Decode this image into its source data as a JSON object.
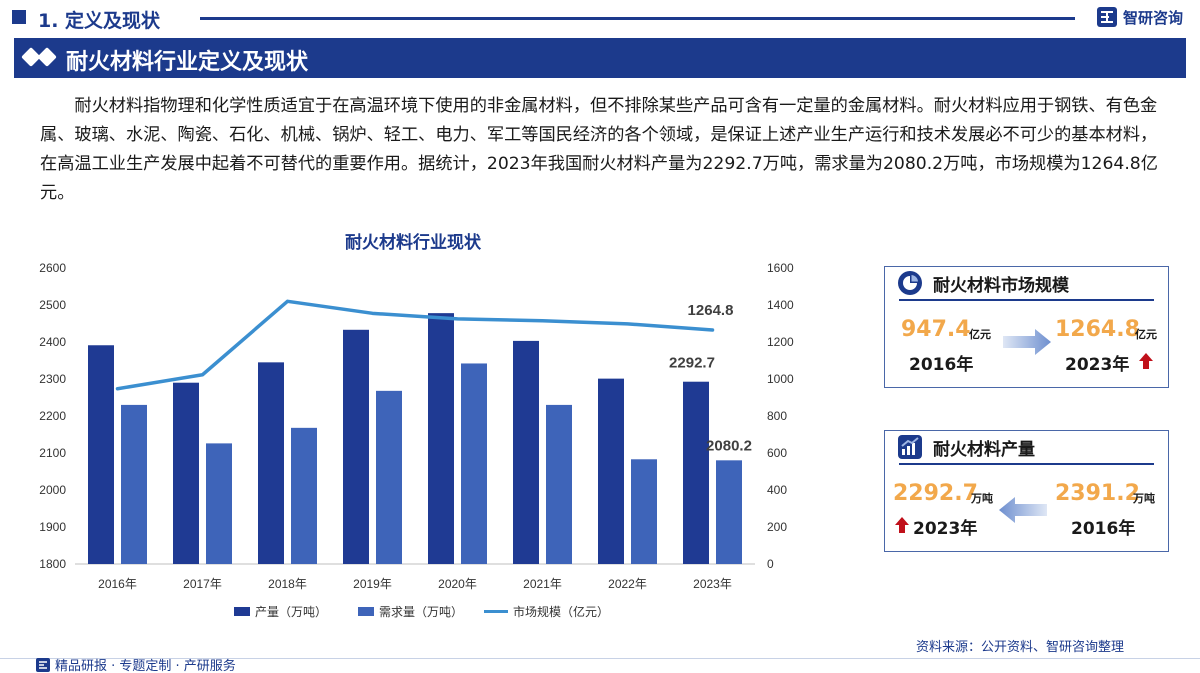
{
  "header": {
    "section": "1. 定义及现状",
    "brand": "智研咨询",
    "banner_title": "耐火材料行业定义及现状"
  },
  "intro": "耐火材料指物理和化学性质适宜于在高温环境下使用的非金属材料，但不排除某些产品可含有一定量的金属材料。耐火材料应用于钢铁、有色金属、玻璃、水泥、陶瓷、石化、机械、锅炉、轻工、电力、军工等国民经济的各个领域，是保证上述产业生产运行和技术发展必不可少的基本材料，在高温工业生产发展中起着不可替代的重要作用。据统计，2023年我国耐火材料产量为2292.7万吨，需求量为2080.2万吨，市场规模为1264.8亿元。",
  "chart_data": {
    "type": "bar",
    "title": "耐火材料行业现状",
    "categories": [
      "2016年",
      "2017年",
      "2018年",
      "2019年",
      "2020年",
      "2021年",
      "2022年",
      "2023年"
    ],
    "series": [
      {
        "name": "产量（万吨）",
        "type": "bar",
        "axis": "left",
        "color": "#1f3a93",
        "values": [
          2391.2,
          2290,
          2345,
          2433,
          2478,
          2403,
          2301,
          2292.7
        ]
      },
      {
        "name": "需求量（万吨）",
        "type": "bar",
        "axis": "left",
        "color": "#3e64b9",
        "values": [
          2230,
          2126,
          2168,
          2268,
          2342,
          2230,
          2083,
          2080.2
        ]
      },
      {
        "name": "市场规模（亿元）",
        "type": "line",
        "axis": "right",
        "color": "#3b8fd0",
        "values": [
          947.4,
          1023,
          1420,
          1355,
          1325,
          1315,
          1298,
          1264.8
        ]
      }
    ],
    "data_labels": {
      "produce_last": "2292.7",
      "demand_last": "2080.2",
      "market_last": "1264.8"
    },
    "ylim_left": [
      1800,
      2600
    ],
    "ylim_right": [
      0,
      1600
    ],
    "left_ticks": [
      1800,
      1900,
      2000,
      2100,
      2200,
      2300,
      2400,
      2500,
      2600
    ],
    "right_ticks": [
      0,
      200,
      400,
      600,
      800,
      1000,
      1200,
      1400,
      1600
    ],
    "legend_position": "bottom",
    "grid": false
  },
  "market_card": {
    "title": "耐火材料市场规模",
    "from_value": "947.4",
    "from_unit": "亿元",
    "from_year": "2016年",
    "to_value": "1264.8",
    "to_unit": "亿元",
    "to_year": "2023年"
  },
  "output_card": {
    "title": "耐火材料产量",
    "new_value": "2292.7",
    "new_unit": "万吨",
    "new_year": "2023年",
    "old_value": "2391.2",
    "old_unit": "万吨",
    "old_year": "2016年"
  },
  "footer": {
    "source": "资料来源：公开资料、智研咨询整理",
    "tagline": "精品研报 · 专题定制 · 产研服务"
  },
  "colors": {
    "brand": "#1c3a8c",
    "accent": "#f2a84b",
    "up_arrow": "#c0101a"
  },
  "icons": {
    "brand": "zhiyan-logo-icon",
    "market": "pie-chart-icon",
    "output": "bar-trend-icon",
    "up": "up-arrow-icon",
    "flow": "flow-arrow-icon"
  }
}
